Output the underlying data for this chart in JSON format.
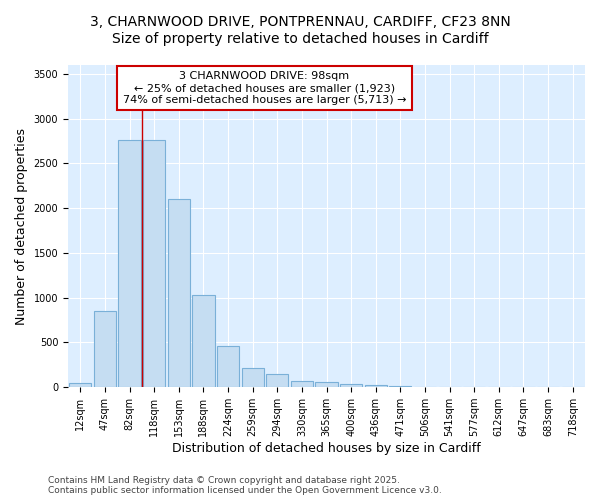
{
  "title1": "3, CHARNWOOD DRIVE, PONTPRENNAU, CARDIFF, CF23 8NN",
  "title2": "Size of property relative to detached houses in Cardiff",
  "xlabel": "Distribution of detached houses by size in Cardiff",
  "ylabel": "Number of detached properties",
  "categories": [
    "12sqm",
    "47sqm",
    "82sqm",
    "118sqm",
    "153sqm",
    "188sqm",
    "224sqm",
    "259sqm",
    "294sqm",
    "330sqm",
    "365sqm",
    "400sqm",
    "436sqm",
    "471sqm",
    "506sqm",
    "541sqm",
    "577sqm",
    "612sqm",
    "647sqm",
    "683sqm",
    "718sqm"
  ],
  "values": [
    52,
    850,
    2760,
    2760,
    2100,
    1030,
    460,
    210,
    150,
    70,
    55,
    35,
    20,
    15,
    5,
    5,
    3,
    3,
    2,
    2,
    1
  ],
  "bar_color": "#c5ddf2",
  "bar_edge_color": "#7ab0d8",
  "vline_color": "#cc0000",
  "vline_x": 2.5,
  "annotation_title": "3 CHARNWOOD DRIVE: 98sqm",
  "annotation_line1": "← 25% of detached houses are smaller (1,923)",
  "annotation_line2": "74% of semi-detached houses are larger (5,713) →",
  "annotation_box_facecolor": "#ffffff",
  "annotation_box_edgecolor": "#cc0000",
  "footer1": "Contains HM Land Registry data © Crown copyright and database right 2025.",
  "footer2": "Contains public sector information licensed under the Open Government Licence v3.0.",
  "ylim": [
    0,
    3600
  ],
  "yticks": [
    0,
    500,
    1000,
    1500,
    2000,
    2500,
    3000,
    3500
  ],
  "plot_bg_color": "#ddeeff",
  "fig_bg_color": "#ffffff",
  "grid_color": "#ffffff",
  "title_fontsize": 10,
  "axis_label_fontsize": 9,
  "tick_fontsize": 7,
  "footer_fontsize": 6.5,
  "annotation_fontsize": 8
}
